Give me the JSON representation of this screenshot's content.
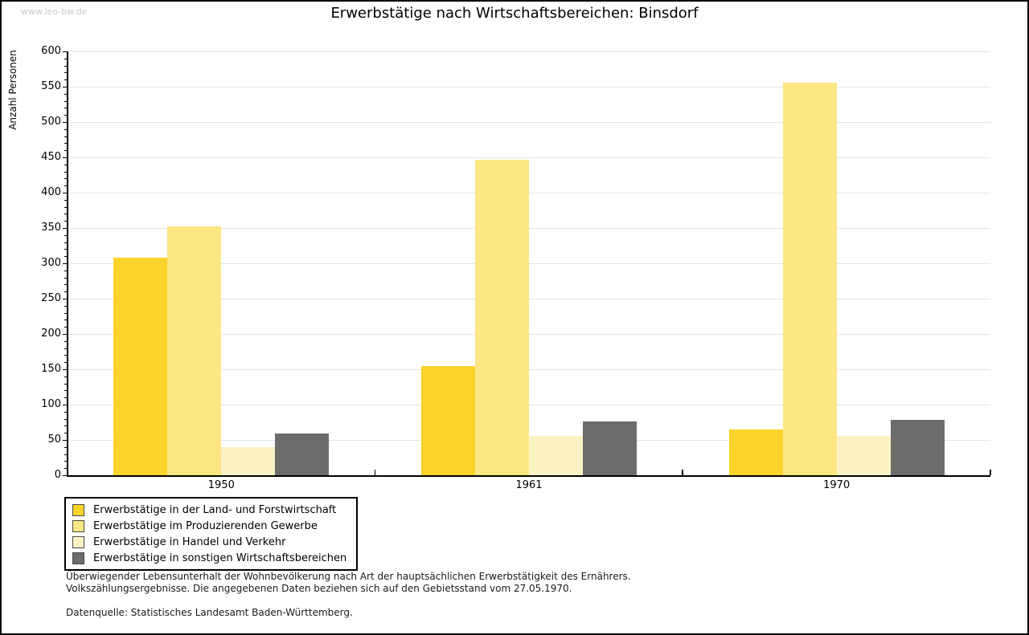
{
  "watermark": "www.leo-bw.de",
  "title": "Erwerbstätige nach Wirtschaftsbereichen: Binsdorf",
  "chart_data": {
    "type": "bar",
    "title": "Erwerbstätige nach Wirtschaftsbereichen: Binsdorf",
    "categories": [
      "1950",
      "1961",
      "1970"
    ],
    "series": [
      {
        "name": "Erwerbstätige in der Land- und Forstwirtschaft",
        "color": "#FBD32B",
        "values": [
          308,
          154,
          65
        ]
      },
      {
        "name": "Erwerbstätige im Produzierenden Gewerbe",
        "color": "#FCE784",
        "values": [
          352,
          447,
          556
        ]
      },
      {
        "name": "Erwerbstätige in Handel und Verkehr",
        "color": "#FBF2C4",
        "values": [
          40,
          56,
          56
        ]
      },
      {
        "name": "Erwerbstätige in sonstigen Wirtschaftsbereichen",
        "color": "#6C6C6C",
        "values": [
          59,
          76,
          78
        ]
      }
    ],
    "xlabel": "",
    "ylabel": "Anzahl Personen",
    "ylim": [
      0,
      600
    ],
    "ytick_step": 50,
    "minor_tick_step": 10,
    "grid": true,
    "legend_position": "bottom-left",
    "colors": {
      "axis": "#000000",
      "grid": "#E4E4E4",
      "watermark": "#C9C9C9"
    }
  },
  "footer": {
    "line1": "Überwiegender Lebensunterhalt der Wohnbevölkerung nach Art der hauptsächlichen Erwerbstätigkeit des Ernährers.",
    "line2": "Volkszählungsergebnisse. Die angegebenen Daten beziehen sich auf den Gebietsstand vom 27.05.1970.",
    "source": "Datenquelle: Statistisches Landesamt Baden-Württemberg."
  }
}
